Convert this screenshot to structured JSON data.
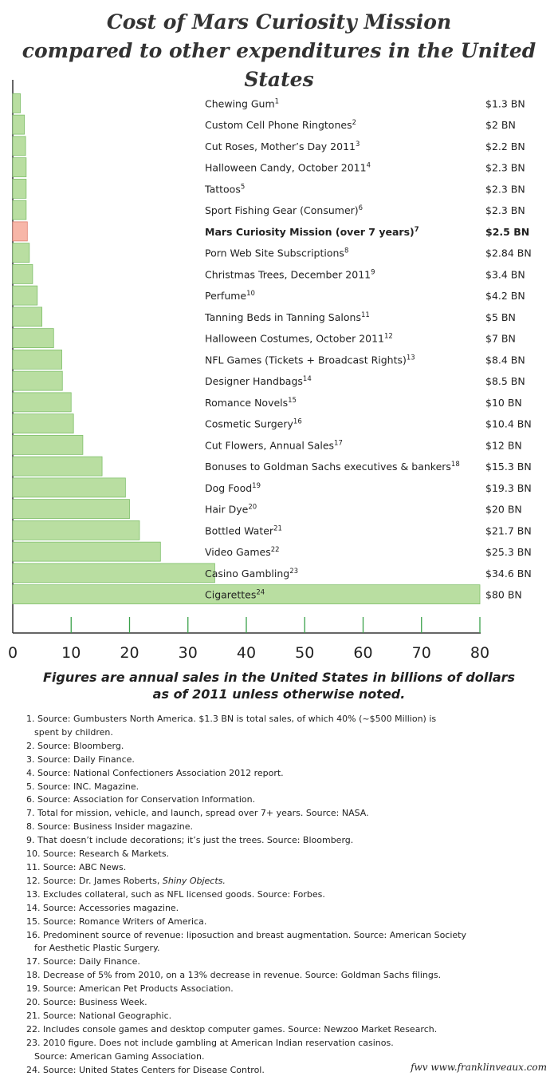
{
  "title_line1": "Cost of Mars Curiosity Mission",
  "title_line2": "compared to other expenditures in the United States",
  "subtitle_line1": "Figures are annual sales in the United States in billions of dollars",
  "subtitle_line2": "as of 2011 unless otherwise noted.",
  "colors": {
    "bar": "#b9dea1",
    "bar_stroke": "#7fbf6a",
    "highlight": "#f7b6a8",
    "highlight_stroke": "#e08070",
    "grid": "#3aa14a"
  },
  "chart_data": {
    "type": "bar",
    "orientation": "horizontal",
    "xlim": [
      0,
      80
    ],
    "xticks": [
      0,
      10,
      20,
      30,
      40,
      50,
      60,
      70,
      80
    ],
    "grid": false,
    "bars": [
      {
        "label": "Chewing Gum",
        "ref": "1",
        "value": 1.3,
        "value_label": "$1.3 BN"
      },
      {
        "label": "Custom Cell Phone Ringtones",
        "ref": "2",
        "value": 2,
        "value_label": "$2 BN"
      },
      {
        "label": "Cut Roses, Mother’s Day 2011",
        "ref": "3",
        "value": 2.2,
        "value_label": "$2.2 BN"
      },
      {
        "label": "Halloween Candy, October 2011",
        "ref": "4",
        "value": 2.3,
        "value_label": "$2.3 BN"
      },
      {
        "label": "Tattoos",
        "ref": "5",
        "value": 2.3,
        "value_label": "$2.3 BN"
      },
      {
        "label": "Sport Fishing Gear (Consumer)",
        "ref": "6",
        "value": 2.3,
        "value_label": "$2.3 BN"
      },
      {
        "label": "Mars Curiosity Mission (over 7 years)",
        "ref": "7",
        "value": 2.5,
        "value_label": "$2.5 BN",
        "highlight": true
      },
      {
        "label": "Porn Web Site Subscriptions",
        "ref": "8",
        "value": 2.84,
        "value_label": "$2.84 BN"
      },
      {
        "label": "Christmas Trees, December 2011",
        "ref": "9",
        "value": 3.4,
        "value_label": "$3.4 BN"
      },
      {
        "label": "Perfume",
        "ref": "10",
        "value": 4.2,
        "value_label": "$4.2 BN"
      },
      {
        "label": "Tanning Beds in Tanning Salons",
        "ref": "11",
        "value": 5,
        "value_label": "$5 BN"
      },
      {
        "label": "Halloween Costumes, October 2011",
        "ref": "12",
        "value": 7,
        "value_label": "$7 BN"
      },
      {
        "label": "NFL Games (Tickets + Broadcast Rights)",
        "ref": "13",
        "value": 8.4,
        "value_label": "$8.4 BN"
      },
      {
        "label": "Designer Handbags",
        "ref": "14",
        "value": 8.5,
        "value_label": "$8.5 BN"
      },
      {
        "label": "Romance Novels",
        "ref": "15",
        "value": 10,
        "value_label": "$10 BN"
      },
      {
        "label": "Cosmetic Surgery",
        "ref": "16",
        "value": 10.4,
        "value_label": "$10.4 BN"
      },
      {
        "label": "Cut Flowers, Annual Sales",
        "ref": "17",
        "value": 12,
        "value_label": "$12 BN"
      },
      {
        "label": "Bonuses to Goldman Sachs executives & bankers",
        "ref": "18",
        "value": 15.3,
        "value_label": "$15.3 BN"
      },
      {
        "label": "Dog Food",
        "ref": "19",
        "value": 19.3,
        "value_label": "$19.3 BN"
      },
      {
        "label": "Hair Dye",
        "ref": "20",
        "value": 20,
        "value_label": "$20 BN"
      },
      {
        "label": "Bottled Water",
        "ref": "21",
        "value": 21.7,
        "value_label": "$21.7 BN"
      },
      {
        "label": "Video Games",
        "ref": "22",
        "value": 25.3,
        "value_label": "$25.3 BN"
      },
      {
        "label": "Casino Gambling",
        "ref": "23",
        "value": 34.6,
        "value_label": "$34.6 BN"
      },
      {
        "label": "Cigarettes",
        "ref": "24",
        "value": 80,
        "value_label": "$80 BN"
      }
    ]
  },
  "footnotes": [
    {
      "num": "1.",
      "text": "Source: Gumbusters North America. $1.3 BN is total sales, of which 40% (~$500 Million) is",
      "cont": "spent by children."
    },
    {
      "num": "2.",
      "text": "Source: Bloomberg."
    },
    {
      "num": "3.",
      "text": "Source: Daily Finance."
    },
    {
      "num": "4.",
      "text": "Source: National Confectioners Association 2012 report."
    },
    {
      "num": "5.",
      "text": "Source: INC. Magazine."
    },
    {
      "num": "6.",
      "text": "Source: Association for Conservation Information."
    },
    {
      "num": "7.",
      "text": "Total for mission, vehicle, and launch, spread over 7+ years. Source: NASA."
    },
    {
      "num": "8.",
      "text": "Source: Business Insider magazine."
    },
    {
      "num": "9.",
      "text": "That doesn’t include decorations; it’s just the trees. Source: Bloomberg."
    },
    {
      "num": "10.",
      "text": "Source: Research & Markets."
    },
    {
      "num": "11.",
      "text": "Source: ABC News."
    },
    {
      "num": "12.",
      "text": "Source: Dr. James Roberts,",
      "italic": "Shiny Objects."
    },
    {
      "num": "13.",
      "text": "Excludes collateral, such as NFL licensed goods. Source: Forbes."
    },
    {
      "num": "14.",
      "text": "Source: Accessories magazine."
    },
    {
      "num": "15.",
      "text": "Source: Romance Writers of America."
    },
    {
      "num": "16.",
      "text": "Predominent source of revenue: liposuction and breast augmentation. Source: American Society",
      "cont": "for Aesthetic Plastic Surgery."
    },
    {
      "num": "17.",
      "text": "Source: Daily Finance."
    },
    {
      "num": "18.",
      "text": "Decrease of 5% from 2010, on a 13% decrease in revenue. Source: Goldman Sachs filings."
    },
    {
      "num": "19.",
      "text": "Source: American Pet Products Association."
    },
    {
      "num": "20.",
      "text": "Source: Business Week."
    },
    {
      "num": "21.",
      "text": "Source: National Geographic."
    },
    {
      "num": "22.",
      "text": "Includes console games and desktop computer games. Source: Newzoo Market Research."
    },
    {
      "num": "23.",
      "text": "2010 figure. Does not include gambling at American Indian reservation casinos.",
      "cont": "Source: American Gaming Association."
    },
    {
      "num": "24.",
      "text": "Source: United States Centers for Disease Control."
    }
  ],
  "credit": "fwv   www.franklinveaux.com"
}
